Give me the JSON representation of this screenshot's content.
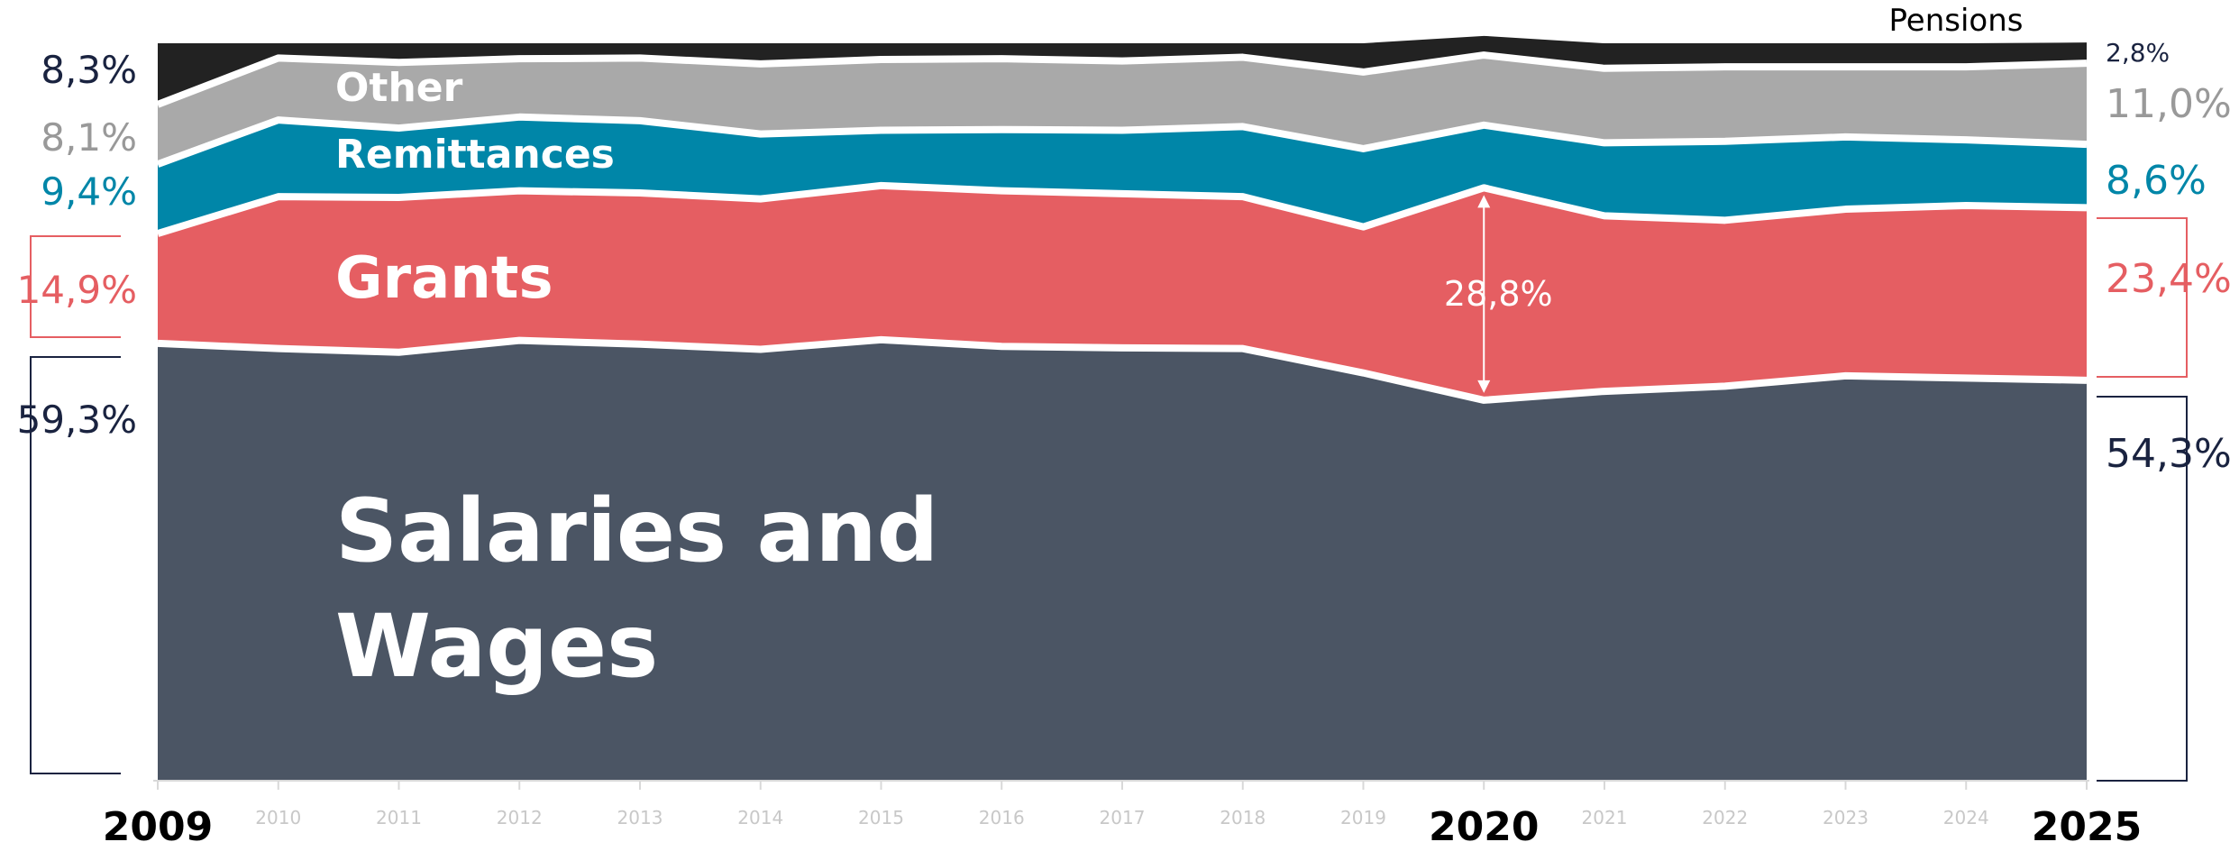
{
  "chart_data": {
    "type": "area",
    "stacked": true,
    "normalized_100pct": true,
    "title": "",
    "xlabel": "",
    "ylabel": "",
    "ylim": [
      0,
      100
    ],
    "grid": false,
    "legend": "none (labels placed on areas)",
    "x": [
      "2009",
      "2010",
      "2011",
      "2012",
      "2013",
      "2014",
      "2015",
      "2016",
      "2017",
      "2018",
      "2019",
      "2020",
      "2021",
      "2022",
      "2023",
      "2024",
      "2025"
    ],
    "highlighted_x": [
      "2009",
      "2020",
      "2025"
    ],
    "series": [
      {
        "name": "Salaries and Wages",
        "color": "#4b5564",
        "values": [
          59.3,
          58.6,
          58.1,
          59.7,
          59.2,
          58.5,
          59.8,
          58.9,
          58.7,
          58.6,
          55.3,
          51.6,
          52.8,
          53.5,
          54.9,
          54.6,
          54.3
        ]
      },
      {
        "name": "Grants",
        "color": "#e55e62",
        "values": [
          14.9,
          20.6,
          21.0,
          20.3,
          20.5,
          20.4,
          20.9,
          21.1,
          20.9,
          20.6,
          19.8,
          28.8,
          23.8,
          22.5,
          22.6,
          23.4,
          23.4
        ]
      },
      {
        "name": "Remittances",
        "color": "#0086a8",
        "values": [
          9.4,
          10.4,
          9.4,
          10.0,
          9.8,
          8.8,
          7.5,
          8.3,
          8.6,
          9.5,
          10.6,
          8.5,
          9.9,
          10.7,
          9.8,
          8.9,
          8.6
        ]
      },
      {
        "name": "Other",
        "color": "#a9a9a9",
        "values": [
          8.1,
          8.4,
          8.9,
          7.9,
          8.5,
          9.5,
          9.6,
          9.6,
          9.4,
          9.4,
          10.4,
          9.5,
          10.1,
          10.1,
          9.5,
          9.9,
          11.0
        ]
      },
      {
        "name": "Pensions",
        "color": "#222222",
        "values": [
          8.3,
          2.0,
          2.6,
          2.1,
          2.0,
          2.8,
          2.2,
          2.1,
          2.4,
          1.9,
          3.9,
          2.6,
          3.4,
          3.2,
          3.2,
          3.2,
          2.8
        ]
      }
    ],
    "annotations": {
      "left_2009": [
        {
          "series": "Pensions",
          "text": "8,3%",
          "color": "#1a2340"
        },
        {
          "series": "Other",
          "text": "8,1%",
          "color": "#999999"
        },
        {
          "series": "Remittances",
          "text": "9,4%",
          "color": "#0086a8"
        },
        {
          "series": "Grants",
          "text": "14,9%",
          "color": "#e55e62"
        },
        {
          "series": "Salaries and Wages",
          "text": "59,3%",
          "color": "#1a2340"
        }
      ],
      "right_2025": [
        {
          "series": "Pensions",
          "text": "2,8%",
          "color": "#1a2340"
        },
        {
          "series": "Other",
          "text": "11,0%",
          "color": "#999999"
        },
        {
          "series": "Remittances",
          "text": "8,6%",
          "color": "#0086a8"
        },
        {
          "series": "Grants",
          "text": "23,4%",
          "color": "#e55e62"
        },
        {
          "series": "Salaries and Wages",
          "text": "54,3%",
          "color": "#1a2340"
        }
      ],
      "grants_2020": {
        "text": "28,8%",
        "x": "2020"
      },
      "pensions_label": "Pensions"
    },
    "area_labels": {
      "other": "Other",
      "remittances": "Remittances",
      "grants": "Grants",
      "salaries_line1": "Salaries and",
      "salaries_line2": "Wages"
    }
  }
}
